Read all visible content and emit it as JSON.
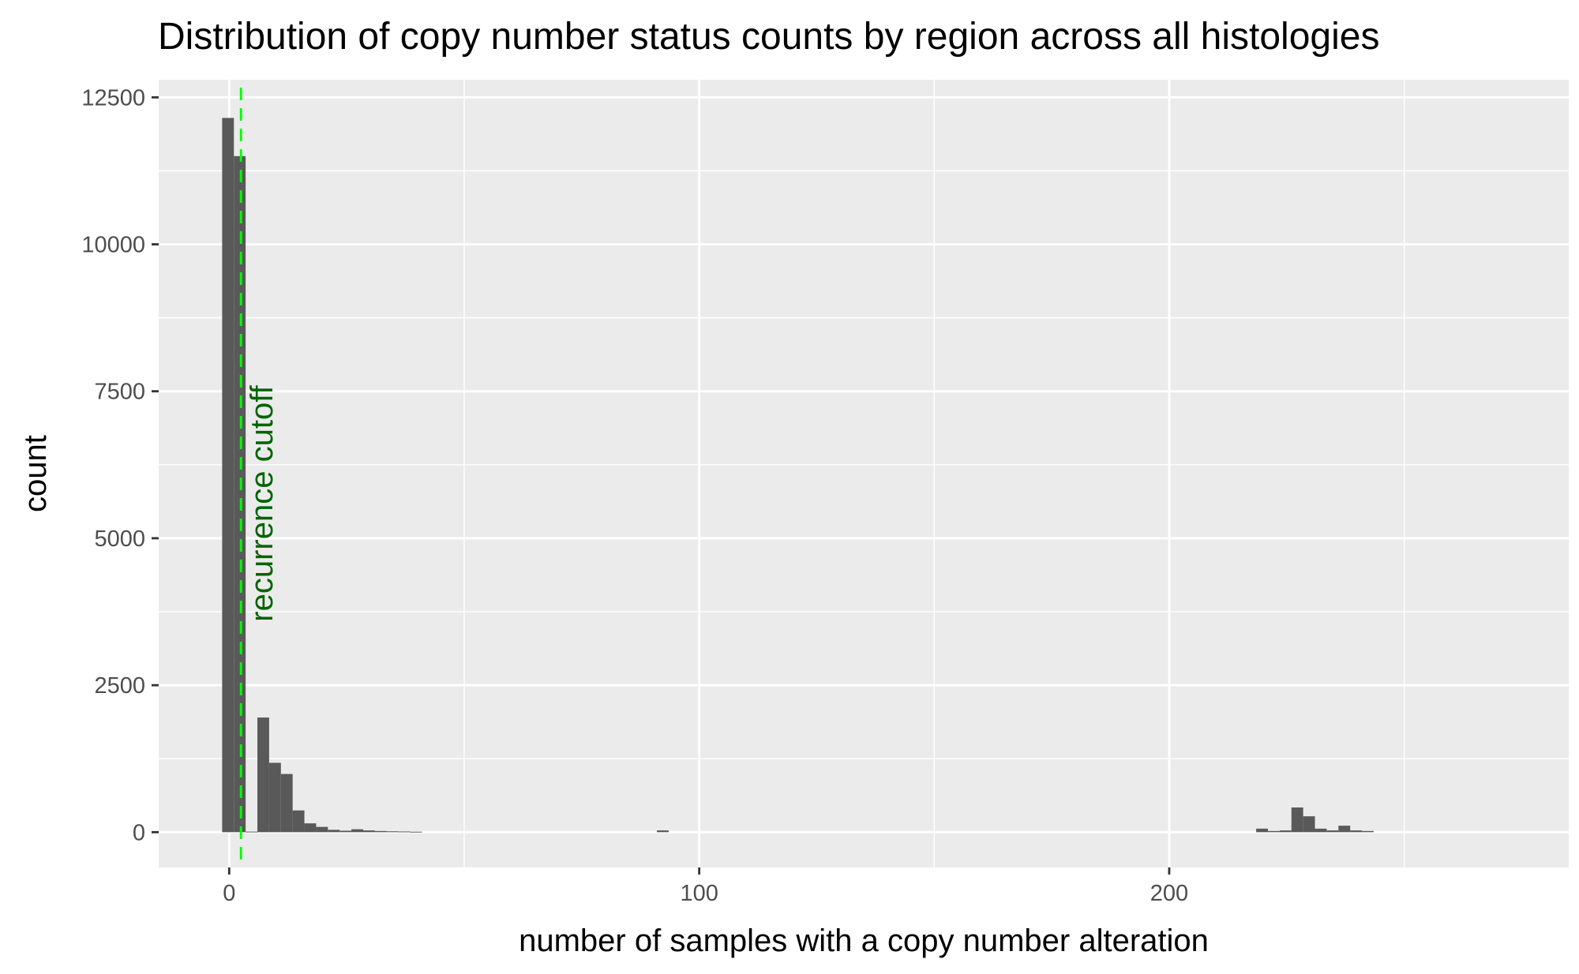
{
  "chart_data": {
    "type": "histogram",
    "title": "Distribution of copy number status counts by region across all histologies",
    "xlabel": "number of samples with a copy number alteration",
    "ylabel": "count",
    "xlim": [
      -15,
      285
    ],
    "ylim": [
      -600,
      12800
    ],
    "x_ticks": [
      0,
      100,
      200
    ],
    "x_tick_labels": [
      "0",
      "100",
      "200"
    ],
    "y_ticks": [
      0,
      2500,
      5000,
      7500,
      10000,
      12500
    ],
    "y_tick_labels": [
      "0",
      "2500",
      "5000",
      "7500",
      "10000",
      "12500"
    ],
    "grid": true,
    "bin_width": 2.5,
    "bar_color": "#595959",
    "panel_color": "#ebebeb",
    "bins": [
      {
        "x0": -1.5,
        "x1": 1.0,
        "count": 12150
      },
      {
        "x0": 1.0,
        "x1": 3.5,
        "count": 11500
      },
      {
        "x0": 3.5,
        "x1": 6.0,
        "count": 10
      },
      {
        "x0": 6.0,
        "x1": 8.5,
        "count": 1950
      },
      {
        "x0": 8.5,
        "x1": 11.0,
        "count": 1180
      },
      {
        "x0": 11.0,
        "x1": 13.5,
        "count": 990
      },
      {
        "x0": 13.5,
        "x1": 16.0,
        "count": 370
      },
      {
        "x0": 16.0,
        "x1": 18.5,
        "count": 150
      },
      {
        "x0": 18.5,
        "x1": 21.0,
        "count": 90
      },
      {
        "x0": 21.0,
        "x1": 23.5,
        "count": 40
      },
      {
        "x0": 23.5,
        "x1": 26.0,
        "count": 25
      },
      {
        "x0": 26.0,
        "x1": 28.5,
        "count": 50
      },
      {
        "x0": 28.5,
        "x1": 31.0,
        "count": 30
      },
      {
        "x0": 31.0,
        "x1": 33.5,
        "count": 20
      },
      {
        "x0": 33.5,
        "x1": 36.0,
        "count": 15
      },
      {
        "x0": 36.0,
        "x1": 38.5,
        "count": 12
      },
      {
        "x0": 38.5,
        "x1": 41.0,
        "count": 8
      },
      {
        "x0": 91.0,
        "x1": 93.5,
        "count": 30
      },
      {
        "x0": 218.5,
        "x1": 221.0,
        "count": 60
      },
      {
        "x0": 221.0,
        "x1": 223.5,
        "count": 20
      },
      {
        "x0": 223.5,
        "x1": 226.0,
        "count": 30
      },
      {
        "x0": 226.0,
        "x1": 228.5,
        "count": 420
      },
      {
        "x0": 228.5,
        "x1": 231.0,
        "count": 270
      },
      {
        "x0": 231.0,
        "x1": 233.5,
        "count": 60
      },
      {
        "x0": 233.5,
        "x1": 236.0,
        "count": 30
      },
      {
        "x0": 236.0,
        "x1": 238.5,
        "count": 110
      },
      {
        "x0": 238.5,
        "x1": 241.0,
        "count": 30
      },
      {
        "x0": 241.0,
        "x1": 243.5,
        "count": 20
      }
    ],
    "reference_line": {
      "x": 2.5,
      "label": "recurrence cutoff",
      "label_y": 7600,
      "line_color": "#00ff00",
      "label_color": "#006400",
      "style": "dashed"
    }
  }
}
